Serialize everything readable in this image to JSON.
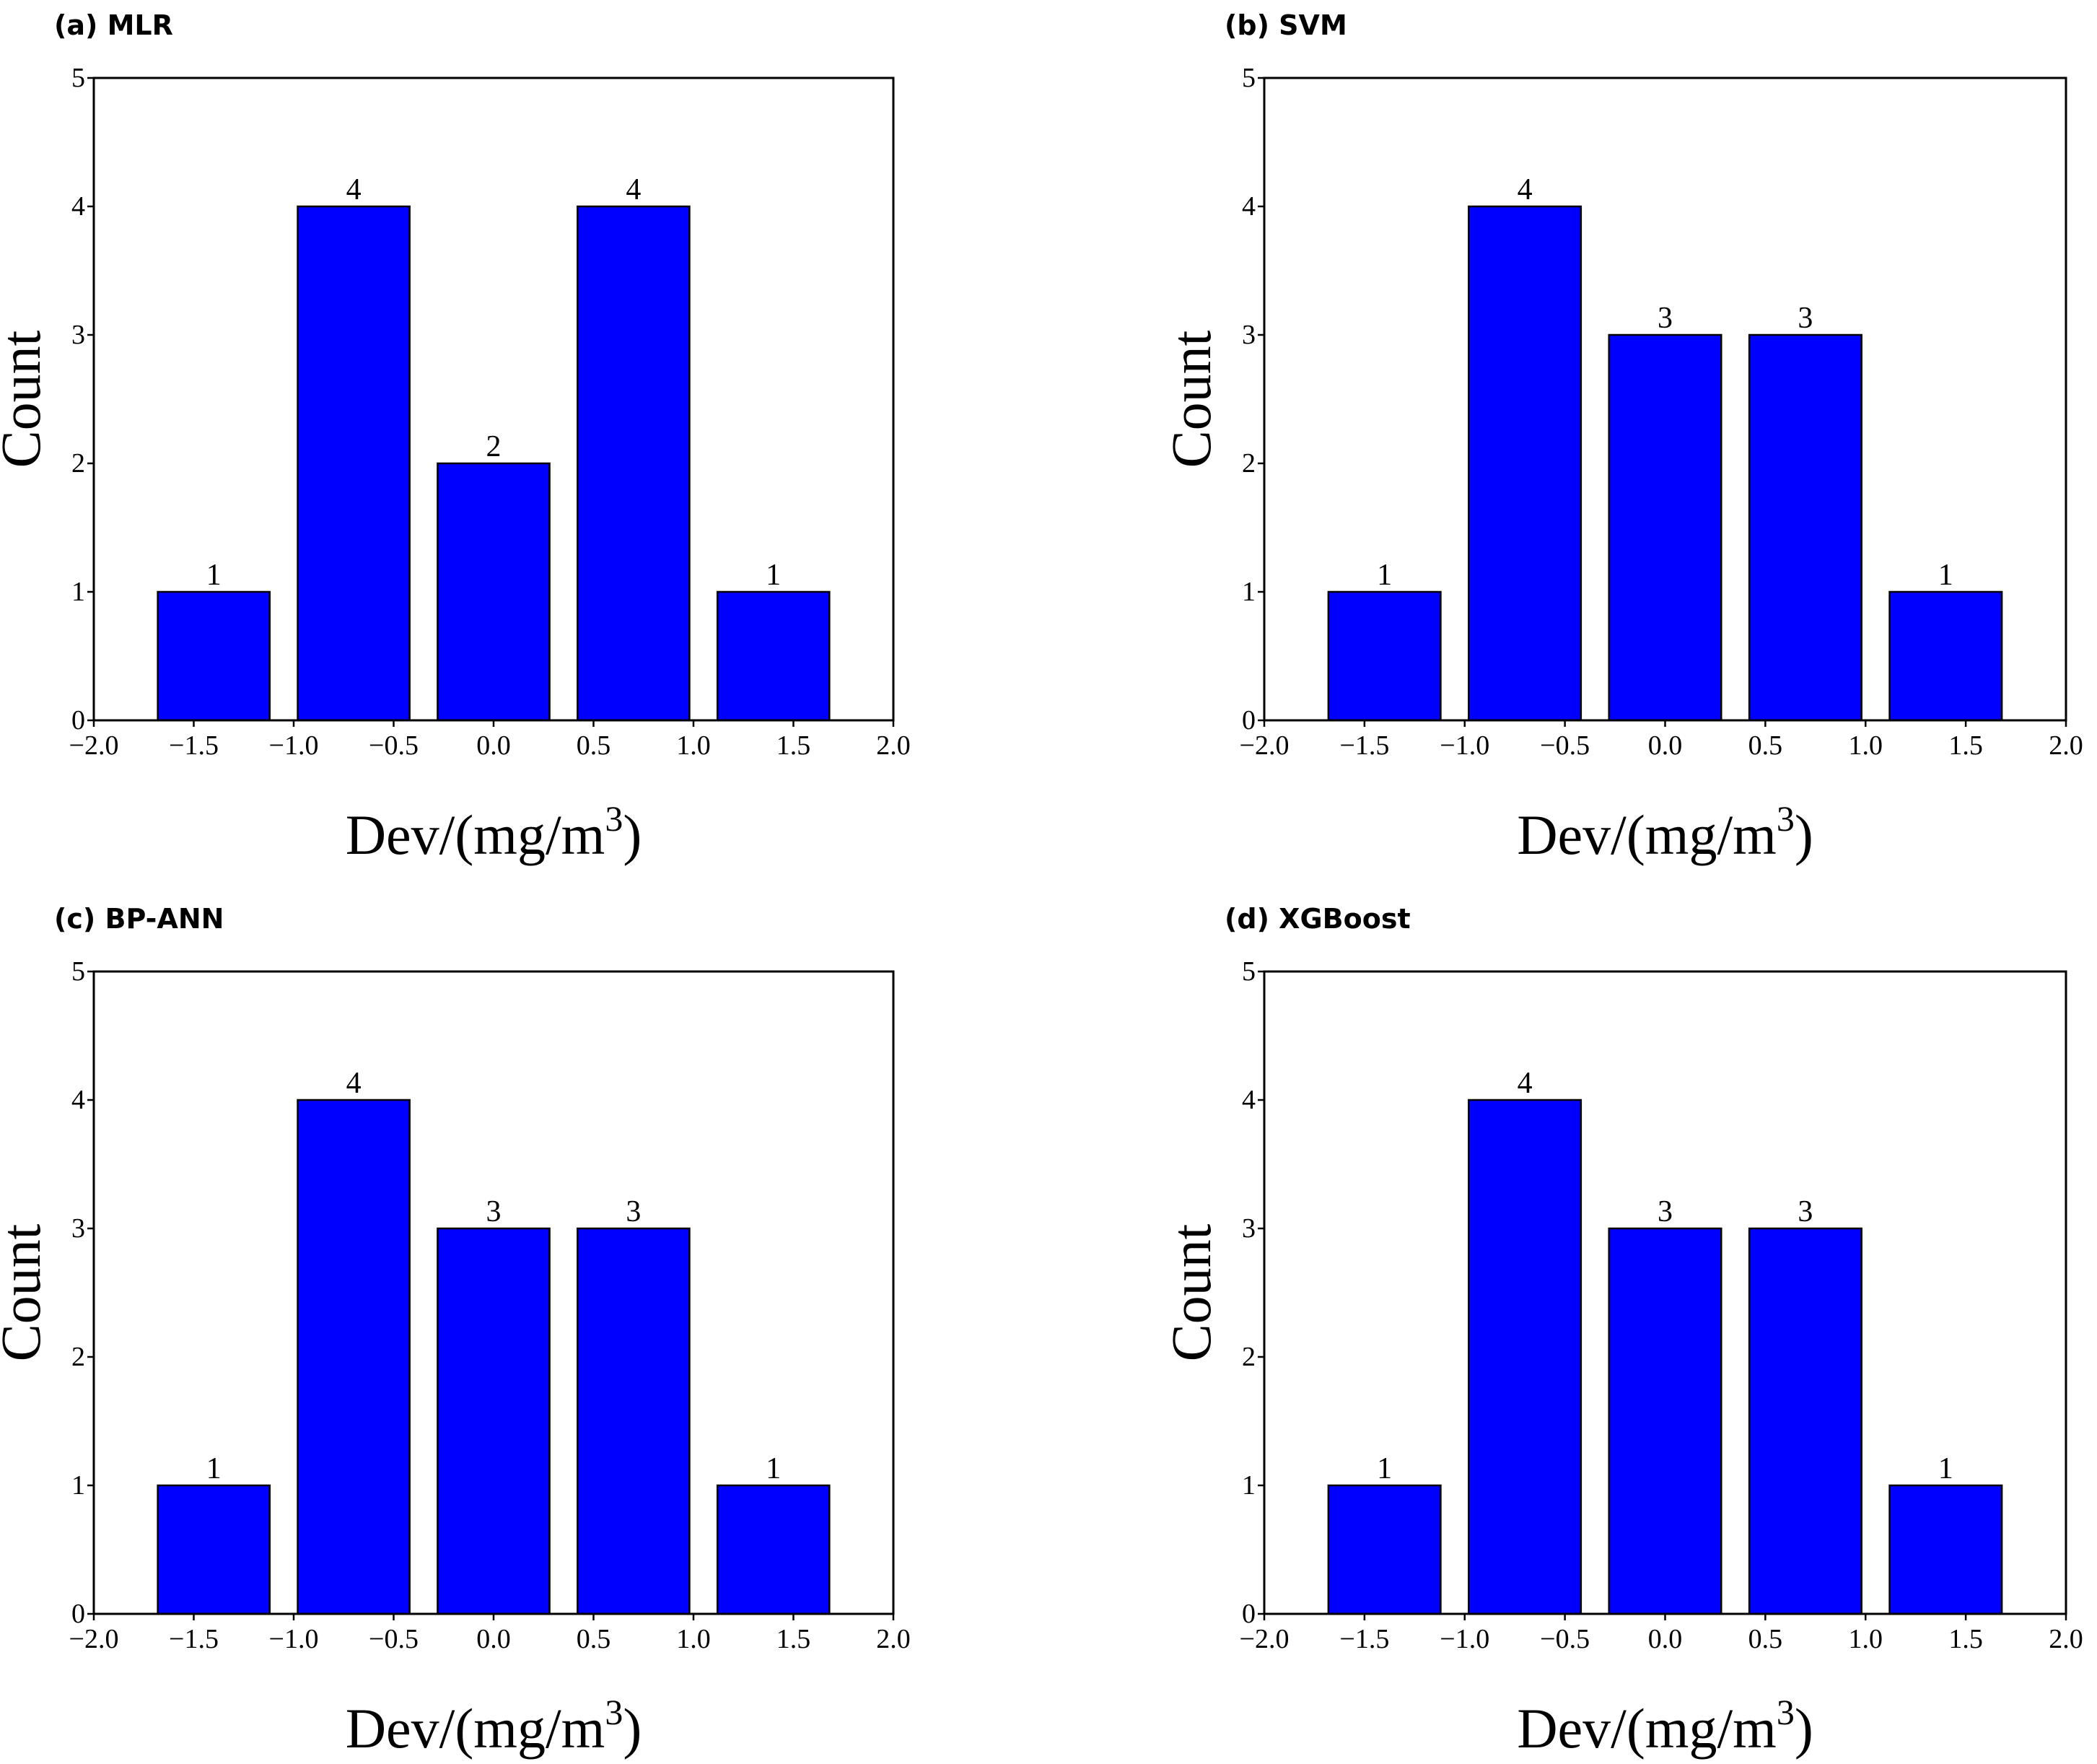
{
  "colors": {
    "bar": "#0000ff",
    "edge": "#000000"
  },
  "chart_data": [
    {
      "type": "bar",
      "title": "(a)  MLR",
      "xlabel": "Dev/(mg/m",
      "xlabel_sup": "3",
      "xlabel_end": ")",
      "ylabel": "Count",
      "x": [
        -1.4,
        -0.7,
        0.0,
        0.7,
        1.4
      ],
      "bar_width": 0.56,
      "values": [
        1,
        4,
        2,
        4,
        1
      ],
      "xlim": [
        -2.0,
        2.0
      ],
      "ylim": [
        0,
        5
      ],
      "xticks": [
        "−2.0",
        "−1.5",
        "−1.0",
        "−0.5",
        "0.0",
        "0.5",
        "1.0",
        "1.5",
        "2.0"
      ],
      "yticks": [
        "0",
        "1",
        "2",
        "3",
        "4",
        "5"
      ]
    },
    {
      "type": "bar",
      "title": "(b)  SVM",
      "xlabel": "Dev/(mg/m",
      "xlabel_sup": "3",
      "xlabel_end": ")",
      "ylabel": "Count",
      "x": [
        -1.4,
        -0.7,
        0.0,
        0.7,
        1.4
      ],
      "bar_width": 0.56,
      "values": [
        1,
        4,
        3,
        3,
        1
      ],
      "xlim": [
        -2.0,
        2.0
      ],
      "ylim": [
        0,
        5
      ],
      "xticks": [
        "−2.0",
        "−1.5",
        "−1.0",
        "−0.5",
        "0.0",
        "0.5",
        "1.0",
        "1.5",
        "2.0"
      ],
      "yticks": [
        "0",
        "1",
        "2",
        "3",
        "4",
        "5"
      ]
    },
    {
      "type": "bar",
      "title": "(c)  BP-ANN",
      "xlabel": "Dev/(mg/m",
      "xlabel_sup": "3",
      "xlabel_end": ")",
      "ylabel": "Count",
      "x": [
        -1.4,
        -0.7,
        0.0,
        0.7,
        1.4
      ],
      "bar_width": 0.56,
      "values": [
        1,
        4,
        3,
        3,
        1
      ],
      "xlim": [
        -2.0,
        2.0
      ],
      "ylim": [
        0,
        5
      ],
      "xticks": [
        "−2.0",
        "−1.5",
        "−1.0",
        "−0.5",
        "0.0",
        "0.5",
        "1.0",
        "1.5",
        "2.0"
      ],
      "yticks": [
        "0",
        "1",
        "2",
        "3",
        "4",
        "5"
      ]
    },
    {
      "type": "bar",
      "title": "(d)  XGBoost",
      "xlabel": "Dev/(mg/m",
      "xlabel_sup": "3",
      "xlabel_end": ")",
      "ylabel": "Count",
      "x": [
        -1.4,
        -0.7,
        0.0,
        0.7,
        1.4
      ],
      "bar_width": 0.56,
      "values": [
        1,
        4,
        3,
        3,
        1
      ],
      "xlim": [
        -2.0,
        2.0
      ],
      "ylim": [
        0,
        5
      ],
      "xticks": [
        "−2.0",
        "−1.5",
        "−1.0",
        "−0.5",
        "0.0",
        "0.5",
        "1.0",
        "1.5",
        "2.0"
      ],
      "yticks": [
        "0",
        "1",
        "2",
        "3",
        "4",
        "5"
      ]
    }
  ]
}
